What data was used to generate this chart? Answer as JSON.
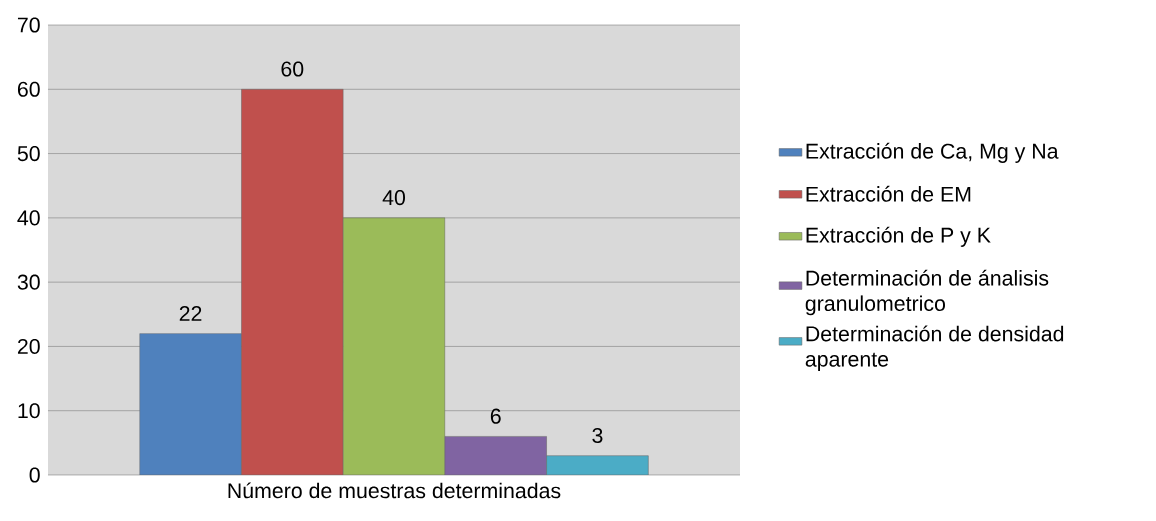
{
  "chart_data": {
    "type": "bar",
    "categories": [
      "Número de muestras determinadas"
    ],
    "series": [
      {
        "name": "Extracción de Ca, Mg y Na",
        "color": "#4f81bd",
        "values": [
          22
        ]
      },
      {
        "name": "Extracción de EM",
        "color": "#c0504d",
        "values": [
          60
        ]
      },
      {
        "name": "Extracción de P y K",
        "color": "#9bbb59",
        "values": [
          40
        ]
      },
      {
        "name": "Determinación de ánalisis granulometrico",
        "color": "#8064a2",
        "values": [
          6
        ]
      },
      {
        "name": "Determinación de densidad aparente",
        "color": "#4bacc6",
        "values": [
          3
        ]
      }
    ],
    "ylim": [
      0,
      70
    ],
    "yticks": [
      0,
      10,
      20,
      30,
      40,
      50,
      60,
      70
    ],
    "grid": "y",
    "legend": "right",
    "data_labels": true
  }
}
